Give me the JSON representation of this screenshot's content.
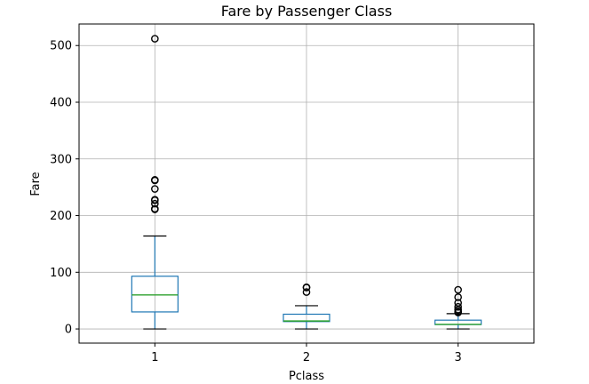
{
  "chart_data": {
    "type": "boxplot",
    "title": "Fare by Passenger Class",
    "xlabel": "Pclass",
    "ylabel": "Fare",
    "categories": [
      "1",
      "2",
      "3"
    ],
    "ylim": [
      -25,
      538
    ],
    "yticks": [
      0,
      100,
      200,
      300,
      400,
      500
    ],
    "grid": true,
    "colors": {
      "box": "#1f77b4",
      "median": "#2ca02c",
      "cap": "#000000",
      "flier": "#000000",
      "grid": "#b0b0b0"
    },
    "boxes": [
      {
        "category": "1",
        "whislo": 0,
        "q1": 30,
        "med": 60,
        "q3": 93,
        "whishi": 164,
        "fliers": [
          211,
          212,
          221,
          227,
          228,
          247,
          262,
          263,
          512
        ]
      },
      {
        "category": "2",
        "whislo": 0,
        "q1": 13,
        "med": 14,
        "q3": 26,
        "whishi": 41,
        "fliers": [
          65,
          73,
          73.5
        ]
      },
      {
        "category": "3",
        "whislo": 0,
        "q1": 7.75,
        "med": 8,
        "q3": 15.5,
        "whishi": 27,
        "fliers": [
          29,
          31,
          34,
          39,
          46,
          56,
          69
        ]
      }
    ]
  }
}
